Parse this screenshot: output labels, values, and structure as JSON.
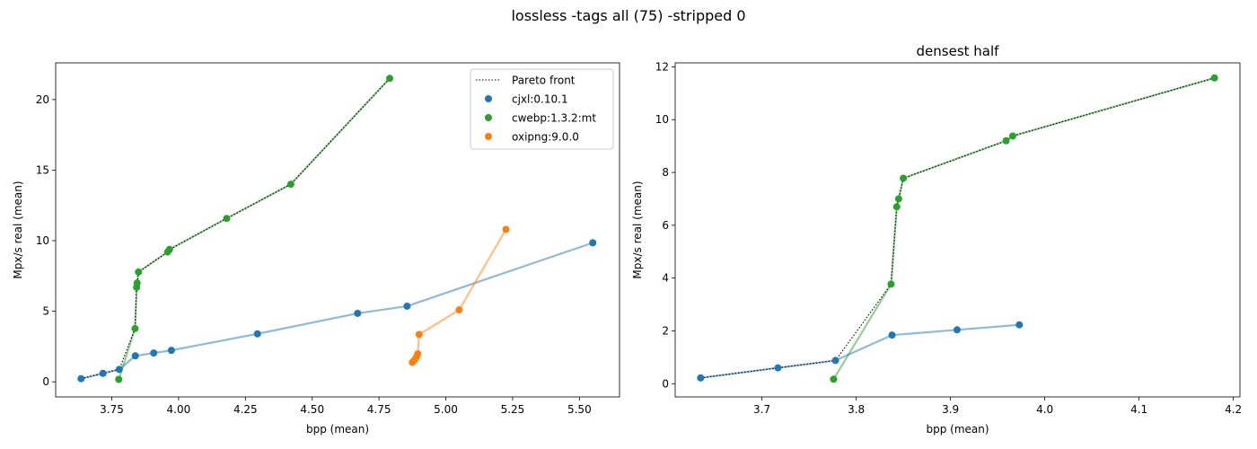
{
  "figure": {
    "suptitle": "lossless -tags all (75) -stripped 0"
  },
  "chart_data": [
    {
      "type": "scatter",
      "title": "",
      "xlabel": "bpp (mean)",
      "ylabel": "Mpx/s real (mean)",
      "xlim": [
        3.54,
        5.65
      ],
      "ylim": [
        -1.07,
        22.6
      ],
      "xticks": [
        3.75,
        4.0,
        4.25,
        4.5,
        4.75,
        5.0,
        5.25,
        5.5
      ],
      "xtick_labels": [
        "3.75",
        "4.00",
        "4.25",
        "4.50",
        "4.75",
        "5.00",
        "5.25",
        "5.50"
      ],
      "yticks": [
        0,
        5,
        10,
        15,
        20
      ],
      "ytick_labels": [
        "0",
        "5",
        "10",
        "15",
        "20"
      ],
      "grid": false,
      "legend": {
        "position": "top-right",
        "items": [
          {
            "label": "Pareto front",
            "kind": "dotted-line",
            "color": "#000000"
          },
          {
            "label": "cjxl:0.10.1",
            "kind": "marker",
            "color": "#1f77b4"
          },
          {
            "label": "cwebp:1.3.2:mt",
            "kind": "marker",
            "color": "#2ca02c"
          },
          {
            "label": "oxipng:9.0.0",
            "kind": "marker",
            "color": "#ff7f0e"
          }
        ]
      },
      "series": [
        {
          "name": "cjxl:0.10.1",
          "color": "#1f77b4",
          "points": [
            [
              3.635,
              0.22
            ],
            [
              3.717,
              0.6
            ],
            [
              3.778,
              0.88
            ],
            [
              3.838,
              1.84
            ],
            [
              3.907,
              2.04
            ],
            [
              3.973,
              2.23
            ],
            [
              4.295,
              3.4
            ],
            [
              4.67,
              4.85
            ],
            [
              4.855,
              5.36
            ],
            [
              5.55,
              9.85
            ]
          ]
        },
        {
          "name": "cwebp:1.3.2:mt",
          "color": "#2ca02c",
          "points": [
            [
              3.776,
              0.17
            ],
            [
              3.837,
              3.77
            ],
            [
              3.843,
              6.7
            ],
            [
              3.845,
              7.0
            ],
            [
              3.85,
              7.78
            ],
            [
              3.959,
              9.2
            ],
            [
              3.966,
              9.38
            ],
            [
              4.18,
              11.58
            ],
            [
              4.42,
              14.0
            ],
            [
              4.79,
              21.5
            ]
          ]
        },
        {
          "name": "oxipng:9.0.0",
          "color": "#ff7f0e",
          "points": [
            [
              4.875,
              1.38
            ],
            [
              4.883,
              1.55
            ],
            [
              4.89,
              1.75
            ],
            [
              4.895,
              1.98
            ],
            [
              4.9,
              3.35
            ],
            [
              5.05,
              5.1
            ],
            [
              5.225,
              10.8
            ]
          ]
        }
      ],
      "pareto_front": [
        [
          3.635,
          0.22
        ],
        [
          3.717,
          0.6
        ],
        [
          3.778,
          0.88
        ],
        [
          3.837,
          3.77
        ],
        [
          3.843,
          6.7
        ],
        [
          3.845,
          7.0
        ],
        [
          3.85,
          7.78
        ],
        [
          3.959,
          9.2
        ],
        [
          3.966,
          9.38
        ],
        [
          4.18,
          11.58
        ],
        [
          4.42,
          14.0
        ],
        [
          4.79,
          21.5
        ]
      ]
    },
    {
      "type": "scatter",
      "title": "densest half",
      "xlabel": "bpp (mean)",
      "ylabel": "Mpx/s real (mean)",
      "xlim": [
        3.608,
        4.207
      ],
      "ylim": [
        -0.5,
        12.15
      ],
      "xticks": [
        3.7,
        3.8,
        3.9,
        4.0,
        4.1,
        4.2
      ],
      "xtick_labels": [
        "3.7",
        "3.8",
        "3.9",
        "4.0",
        "4.1",
        "4.2"
      ],
      "yticks": [
        0,
        2,
        4,
        6,
        8,
        10,
        12
      ],
      "ytick_labels": [
        "0",
        "2",
        "4",
        "6",
        "8",
        "10",
        "12"
      ],
      "grid": false,
      "series": [
        {
          "name": "cjxl:0.10.1",
          "color": "#1f77b4",
          "points": [
            [
              3.635,
              0.22
            ],
            [
              3.717,
              0.6
            ],
            [
              3.778,
              0.88
            ],
            [
              3.838,
              1.84
            ],
            [
              3.907,
              2.04
            ],
            [
              3.973,
              2.23
            ]
          ]
        },
        {
          "name": "cwebp:1.3.2:mt",
          "color": "#2ca02c",
          "points": [
            [
              3.776,
              0.17
            ],
            [
              3.837,
              3.77
            ],
            [
              3.843,
              6.7
            ],
            [
              3.845,
              7.0
            ],
            [
              3.85,
              7.78
            ],
            [
              3.959,
              9.2
            ],
            [
              3.966,
              9.38
            ],
            [
              4.18,
              11.58
            ]
          ]
        }
      ],
      "pareto_front": [
        [
          3.635,
          0.22
        ],
        [
          3.717,
          0.6
        ],
        [
          3.778,
          0.88
        ],
        [
          3.837,
          3.77
        ],
        [
          3.843,
          6.7
        ],
        [
          3.845,
          7.0
        ],
        [
          3.85,
          7.78
        ],
        [
          3.959,
          9.2
        ],
        [
          3.966,
          9.38
        ],
        [
          4.18,
          11.58
        ]
      ]
    }
  ]
}
